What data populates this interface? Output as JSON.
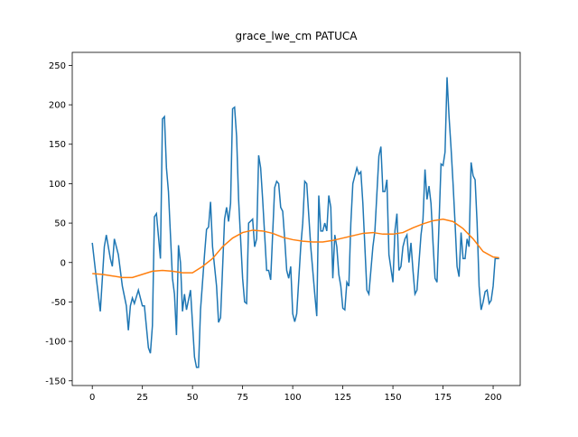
{
  "chart_data": {
    "type": "line",
    "title": "grace_lwe_cm PATUCA",
    "xlim": [
      -10,
      213.5
    ],
    "ylim": [
      -156,
      266.5
    ],
    "xticks": [
      0,
      25,
      50,
      75,
      100,
      125,
      150,
      175,
      200
    ],
    "yticks": [
      -150,
      -100,
      -50,
      0,
      50,
      100,
      150,
      200,
      250
    ],
    "series": [
      {
        "color": "#1f77b4",
        "x": [
          0,
          2,
          4,
          6,
          7,
          9,
          10,
          11,
          13,
          15,
          17,
          18,
          19,
          20,
          21,
          23,
          25,
          26,
          28,
          29,
          30,
          31,
          32,
          34,
          35,
          36,
          37,
          38,
          40,
          41,
          42,
          43,
          44,
          45,
          46,
          47,
          49,
          51,
          52,
          53,
          54,
          56,
          57,
          58,
          59,
          60,
          62,
          63,
          64,
          66,
          67,
          68,
          69,
          70,
          71,
          72,
          73,
          75,
          76,
          77,
          78,
          80,
          81,
          82,
          83,
          84,
          85,
          87,
          88,
          89,
          91,
          92,
          93,
          94,
          95,
          96,
          97,
          98,
          99,
          100,
          101,
          102,
          104,
          105,
          106,
          107,
          108,
          109,
          110,
          111,
          112,
          113,
          114,
          115,
          116,
          117,
          118,
          119,
          120,
          121,
          122,
          123,
          124,
          125,
          126,
          127,
          128,
          129,
          130,
          131,
          132,
          133,
          134,
          135,
          136,
          137,
          138,
          139,
          140,
          141,
          143,
          144,
          145,
          146,
          147,
          148,
          150,
          151,
          152,
          153,
          154,
          155,
          156,
          157,
          158,
          159,
          160,
          161,
          162,
          164,
          165,
          166,
          167,
          168,
          169,
          170,
          171,
          172,
          173,
          174,
          175,
          176,
          177,
          178,
          179,
          180,
          181,
          182,
          183,
          184,
          185,
          186,
          187,
          188,
          189,
          190,
          191,
          192,
          193,
          194,
          195,
          196,
          197,
          198,
          199,
          200,
          201,
          202,
          203
        ],
        "values": [
          25,
          -20,
          -62,
          20,
          35,
          5,
          -5,
          30,
          10,
          -30,
          -55,
          -86,
          -55,
          -45,
          -52,
          -35,
          -55,
          -55,
          -108,
          -115,
          -80,
          58,
          62,
          5,
          182,
          185,
          120,
          90,
          -20,
          -40,
          -92,
          22,
          0,
          -62,
          -40,
          -60,
          -35,
          -120,
          -133,
          -133,
          -60,
          10,
          42,
          45,
          77,
          20,
          -30,
          -76,
          -70,
          55,
          70,
          52,
          75,
          195,
          197,
          160,
          80,
          -20,
          -50,
          -52,
          50,
          55,
          20,
          30,
          136,
          120,
          80,
          -10,
          -10,
          -22,
          95,
          103,
          100,
          70,
          65,
          30,
          -10,
          -20,
          -5,
          -65,
          -75,
          -65,
          20,
          50,
          103,
          100,
          60,
          20,
          -10,
          -40,
          -68,
          85,
          40,
          40,
          50,
          40,
          85,
          70,
          -20,
          35,
          20,
          -15,
          -30,
          -58,
          -60,
          -25,
          -30,
          50,
          100,
          110,
          120,
          112,
          115,
          75,
          20,
          -35,
          -40,
          -10,
          20,
          40,
          135,
          147,
          90,
          90,
          105,
          10,
          -25,
          40,
          62,
          -10,
          -5,
          20,
          30,
          35,
          0,
          25,
          -10,
          -40,
          -35,
          35,
          55,
          118,
          80,
          97,
          75,
          25,
          -20,
          -25,
          50,
          125,
          123,
          140,
          235,
          185,
          145,
          100,
          50,
          -5,
          -18,
          38,
          5,
          5,
          30,
          20,
          127,
          110,
          105,
          50,
          -30,
          -60,
          -50,
          -37,
          -35,
          -52,
          -48,
          -30,
          5,
          5,
          5
        ]
      },
      {
        "color": "#ff7f0e",
        "x": [
          0,
          5,
          10,
          15,
          20,
          25,
          30,
          35,
          40,
          45,
          50,
          55,
          60,
          65,
          70,
          75,
          80,
          85,
          90,
          95,
          100,
          105,
          110,
          115,
          120,
          125,
          130,
          135,
          140,
          145,
          150,
          155,
          160,
          165,
          170,
          175,
          180,
          185,
          190,
          195,
          200,
          203
        ],
        "values": [
          -14,
          -15,
          -17,
          -19,
          -19,
          -15,
          -11,
          -10,
          -11,
          -13,
          -13,
          -5,
          5,
          20,
          31,
          38,
          41,
          40,
          37,
          32,
          29,
          27,
          26,
          26,
          28,
          31,
          34,
          37,
          38,
          36,
          36,
          38,
          44,
          49,
          53,
          55,
          52,
          43,
          30,
          14,
          7,
          6
        ]
      }
    ]
  }
}
